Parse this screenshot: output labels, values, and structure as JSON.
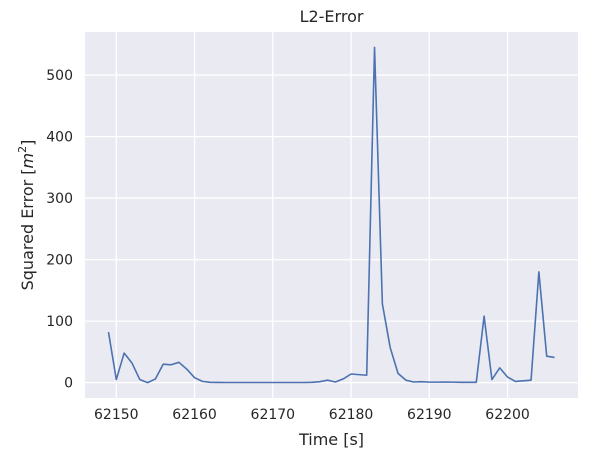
{
  "chart_data": {
    "type": "line",
    "title": "L2-Error",
    "xlabel": "Time [s]",
    "ylabel_main": "Squared Error [",
    "ylabel_var": "m",
    "ylabel_exp": "2",
    "ylabel_end": "]",
    "xlim": [
      62146,
      62209
    ],
    "ylim": [
      -25,
      570
    ],
    "xticks": [
      62150,
      62160,
      62170,
      62180,
      62190,
      62200
    ],
    "yticks": [
      0,
      100,
      200,
      300,
      400,
      500
    ],
    "grid": true,
    "background": "#eaeaf2",
    "line_color": "#4c72b0",
    "series": [
      {
        "x": [
          62149,
          62150,
          62151,
          62152,
          62153,
          62154,
          62155,
          62156,
          62157,
          62158,
          62159,
          62160,
          62161,
          62162,
          62163,
          62164,
          62165,
          62166,
          62167,
          62168,
          62169,
          62170,
          62171,
          62172,
          62173,
          62174,
          62175,
          62176,
          62177,
          62178,
          62179,
          62180,
          62181,
          62182,
          62183,
          62184,
          62185,
          62186,
          62187,
          62188,
          62189,
          62190,
          62191,
          62192,
          62193,
          62194,
          62195,
          62196,
          62197,
          62198,
          62199,
          62200,
          62201,
          62202,
          62203,
          62204,
          62205,
          62206
        ],
        "y": [
          82,
          5,
          48,
          32,
          5,
          0,
          6,
          30,
          29,
          33,
          22,
          8,
          2,
          0.5,
          0.3,
          0.2,
          0.2,
          0.2,
          0.2,
          0.2,
          0.2,
          0.2,
          0.2,
          0.2,
          0.2,
          0.2,
          0.5,
          1.5,
          4,
          1,
          6,
          14,
          13,
          12,
          545,
          128,
          57,
          15,
          4,
          1,
          1.5,
          0.8,
          0.8,
          1,
          0.8,
          0.5,
          0.5,
          0.5,
          108,
          5,
          24,
          9,
          2,
          3,
          4,
          180,
          43,
          41
        ]
      }
    ]
  }
}
